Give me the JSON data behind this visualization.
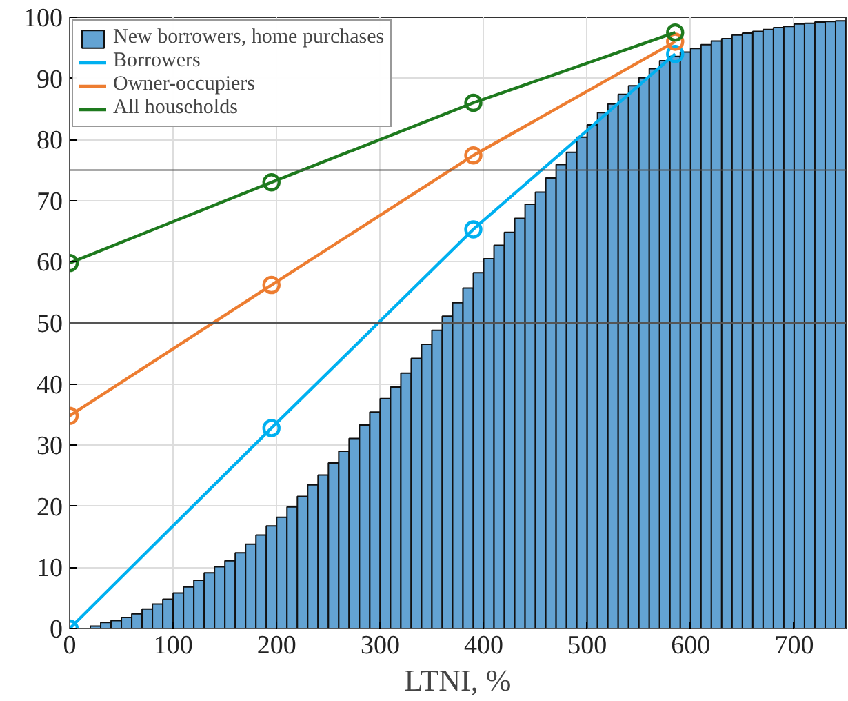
{
  "chart_data": {
    "type": "histogram",
    "xlabel": "LTNI, %",
    "bins": [
      0,
      10,
      20,
      30,
      40,
      50,
      60,
      70,
      80,
      90,
      100,
      110,
      120,
      130,
      140,
      150,
      160,
      170,
      180,
      190,
      200,
      210,
      220,
      230,
      240,
      250,
      260,
      270,
      280,
      290,
      300,
      310,
      320,
      330,
      340,
      350,
      360,
      370,
      380,
      390,
      400,
      410,
      420,
      430,
      440,
      450,
      460,
      470,
      480,
      490,
      500,
      510,
      520,
      530,
      540,
      550,
      560,
      570,
      580,
      590,
      600,
      610,
      620,
      630,
      640,
      650,
      660,
      670,
      680,
      690,
      700,
      710,
      720,
      730,
      740,
      750
    ],
    "series": [
      {
        "name": "New borrowers, home purchases",
        "color": "#63a3d3",
        "values": [
          null,
          null,
          0.4,
          1.0,
          1.3,
          1.8,
          2.4,
          3.2,
          4.0,
          4.8,
          5.8,
          6.8,
          7.9,
          9.1,
          10.1,
          11.1,
          12.4,
          13.8,
          15.3,
          16.8,
          18.2,
          19.9,
          21.6,
          23.5,
          25.1,
          27.1,
          29.0,
          31.1,
          33.3,
          35.4,
          37.6,
          39.5,
          41.8,
          44.2,
          46.5,
          48.8,
          51.1,
          53.3,
          55.7,
          58.2,
          60.5,
          62.7,
          64.8,
          67.1,
          69.4,
          71.4,
          73.7,
          75.9,
          77.9,
          80.4,
          82.4,
          84.4,
          85.8,
          87.4,
          88.8,
          90.1,
          91.6,
          92.9,
          93.6,
          94.3,
          94.9,
          95.5,
          96.1,
          96.5,
          97.1,
          97.4,
          97.7,
          98.0,
          98.3,
          98.5,
          98.9,
          99.0,
          99.2,
          99.3,
          99.4
        ]
      },
      {
        "name": "Borrowers",
        "type": "line",
        "color": "#00b0f0",
        "x": [
          0,
          195,
          390,
          585
        ],
        "values": [
          0,
          32.8,
          65.3,
          94
        ]
      },
      {
        "name": "Owner-occupiers",
        "type": "line",
        "color": "#ed7d31",
        "x": [
          0,
          195,
          390,
          585
        ],
        "values": [
          34.8,
          56.2,
          77.4,
          96
        ]
      },
      {
        "name": "All households",
        "type": "line",
        "color": "#1e7a1e",
        "x": [
          0,
          195,
          390,
          585
        ],
        "values": [
          59.8,
          73,
          86,
          97.5
        ]
      }
    ],
    "xlim": [
      0,
      750
    ],
    "ylim": [
      0,
      100
    ],
    "xticks": [
      0,
      100,
      200,
      300,
      400,
      500,
      600,
      700
    ],
    "yticks": [
      0,
      10,
      20,
      30,
      40,
      50,
      60,
      70,
      80,
      90,
      100
    ],
    "ref_lines": [
      {
        "axis": "y",
        "value": 50,
        "label": null,
        "color": "#555555"
      },
      {
        "axis": "y",
        "value": 75,
        "label": null,
        "color": "#555555"
      }
    ],
    "grid": true,
    "legend": "top left",
    "marker": "circle",
    "line_style": "solid"
  }
}
